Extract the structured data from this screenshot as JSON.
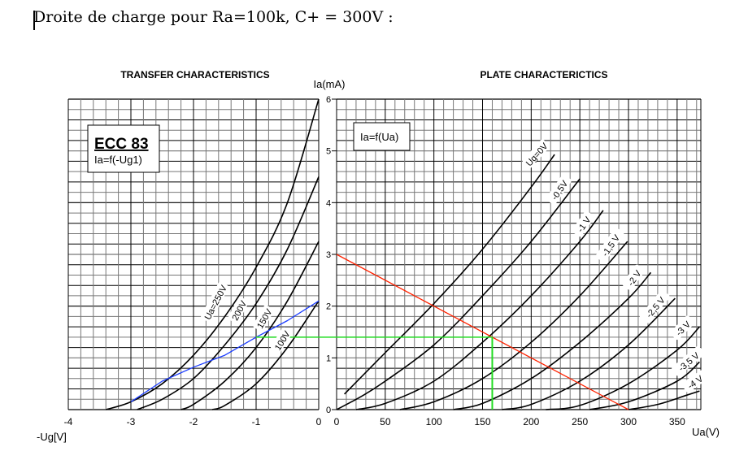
{
  "document": {
    "heading": "Droite de charge pour Ra=100k, C+ = 300V :"
  },
  "chart_data": [
    {
      "type": "line",
      "title": "TRANSFER CHARACTERISTICS",
      "box_title": "ECC 83",
      "box_subtitle": "Ia=f(-Ug1)",
      "xlabel": "-Ug[V]",
      "ylabel": "Ia(mA)",
      "xlim": [
        -4,
        0
      ],
      "ylim": [
        0,
        6
      ],
      "xticks": [
        "-4",
        "-3",
        "-2",
        "-1",
        "0"
      ],
      "yticks": [
        "0",
        "1",
        "2",
        "3",
        "4",
        "5",
        "6"
      ],
      "grid": true,
      "series": [
        {
          "name": "Ua=250V",
          "label": "Ua=250V",
          "color": "#000000",
          "points": [
            [
              -3.4,
              0
            ],
            [
              -3.0,
              0.15
            ],
            [
              -2.5,
              0.5
            ],
            [
              -2.0,
              1.05
            ],
            [
              -1.5,
              1.8
            ],
            [
              -1.0,
              2.75
            ],
            [
              -0.5,
              4.0
            ],
            [
              0,
              6.0
            ]
          ]
        },
        {
          "name": "200V",
          "label": "200V",
          "color": "#000000",
          "points": [
            [
              -2.9,
              0
            ],
            [
              -2.5,
              0.2
            ],
            [
              -2.0,
              0.6
            ],
            [
              -1.5,
              1.25
            ],
            [
              -1.0,
              2.05
            ],
            [
              -0.5,
              3.1
            ],
            [
              0,
              4.5
            ]
          ]
        },
        {
          "name": "150V",
          "label": "150V",
          "color": "#000000",
          "points": [
            [
              -2.2,
              0
            ],
            [
              -2.0,
              0.1
            ],
            [
              -1.5,
              0.55
            ],
            [
              -1.0,
              1.2
            ],
            [
              -0.5,
              2.1
            ],
            [
              0,
              3.25
            ]
          ]
        },
        {
          "name": "100V",
          "label": "100V",
          "color": "#000000",
          "points": [
            [
              -1.7,
              0
            ],
            [
              -1.5,
              0.08
            ],
            [
              -1.0,
              0.5
            ],
            [
              -0.5,
              1.2
            ],
            [
              0,
              2.1
            ]
          ]
        },
        {
          "name": "load-line-transfer",
          "label": "",
          "color": "#1a3cff",
          "points": [
            [
              -3.0,
              0.15
            ],
            [
              -2.5,
              0.55
            ],
            [
              -2.0,
              0.82
            ],
            [
              -1.5,
              1.05
            ],
            [
              -1.0,
              1.4
            ],
            [
              -0.5,
              1.72
            ],
            [
              0,
              2.1
            ]
          ]
        }
      ],
      "operating_point": {
        "ug": -1.0,
        "ia": 1.4,
        "color": "#22dd22"
      }
    },
    {
      "type": "line",
      "title": "PLATE CHARACTERICTICS",
      "box_title": "Ia=f(Ua)",
      "xlabel": "Ua(V)",
      "ylabel": "Ia(mA)",
      "xlim": [
        0,
        375
      ],
      "ylim": [
        0,
        6
      ],
      "xticks": [
        "0",
        "50",
        "100",
        "150",
        "200",
        "250",
        "300",
        "350"
      ],
      "yticks": [
        "0",
        "1",
        "2",
        "3",
        "4",
        "5",
        "6"
      ],
      "grid": true,
      "series": [
        {
          "name": "Ug=0V",
          "label": "Ug=0V",
          "color": "#000000",
          "points": [
            [
              8,
              0.3
            ],
            [
              50,
              1.1
            ],
            [
              100,
              2.05
            ],
            [
              150,
              3.1
            ],
            [
              200,
              4.3
            ],
            [
              224,
              4.93
            ]
          ]
        },
        {
          "name": "-0,5V",
          "label": "-0,5V",
          "color": "#000000",
          "points": [
            [
              0,
              0
            ],
            [
              25,
              0.25
            ],
            [
              50,
              0.55
            ],
            [
              100,
              1.25
            ],
            [
              150,
              2.2
            ],
            [
              200,
              3.25
            ],
            [
              250,
              4.46
            ]
          ]
        },
        {
          "name": "-1 V",
          "label": "-1 V",
          "color": "#000000",
          "points": [
            [
              20,
              0
            ],
            [
              50,
              0.12
            ],
            [
              100,
              0.55
            ],
            [
              150,
              1.3
            ],
            [
              200,
              2.2
            ],
            [
              250,
              3.25
            ],
            [
              274,
              3.85
            ]
          ]
        },
        {
          "name": "-1,5 V",
          "label": "-1,5 V",
          "color": "#000000",
          "points": [
            [
              65,
              0
            ],
            [
              100,
              0.15
            ],
            [
              150,
              0.6
            ],
            [
              200,
              1.3
            ],
            [
              250,
              2.2
            ],
            [
              299,
              3.25
            ]
          ]
        },
        {
          "name": "-2 V",
          "label": "-2 V",
          "color": "#000000",
          "points": [
            [
              120,
              0
            ],
            [
              150,
              0.12
            ],
            [
              200,
              0.6
            ],
            [
              250,
              1.3
            ],
            [
              300,
              2.15
            ],
            [
              323,
              2.65
            ]
          ]
        },
        {
          "name": "-2,5 V",
          "label": "-2,5 V",
          "color": "#000000",
          "points": [
            [
              170,
              0
            ],
            [
              200,
              0.1
            ],
            [
              250,
              0.55
            ],
            [
              300,
              1.25
            ],
            [
              348,
              2.15
            ]
          ]
        },
        {
          "name": "-3 V",
          "label": "-3 V",
          "color": "#000000",
          "points": [
            [
              215,
              0
            ],
            [
              250,
              0.08
            ],
            [
              300,
              0.5
            ],
            [
              350,
              1.15
            ],
            [
              373,
              1.6
            ]
          ]
        },
        {
          "name": "-3,5 V",
          "label": "-3,5 V",
          "color": "#000000",
          "points": [
            [
              260,
              0
            ],
            [
              300,
              0.15
            ],
            [
              350,
              0.55
            ],
            [
              373,
              0.92
            ]
          ]
        },
        {
          "name": "-4 V",
          "label": "-4 V",
          "color": "#000000",
          "points": [
            [
              300,
              0
            ],
            [
              330,
              0.1
            ],
            [
              360,
              0.28
            ],
            [
              373,
              0.36
            ]
          ]
        }
      ],
      "load_line": {
        "points": [
          [
            0,
            3.0
          ],
          [
            300,
            0
          ]
        ],
        "color": "#ff2200"
      },
      "operating_point": {
        "ua": 160,
        "ia": 1.4,
        "color": "#22dd22"
      }
    }
  ]
}
